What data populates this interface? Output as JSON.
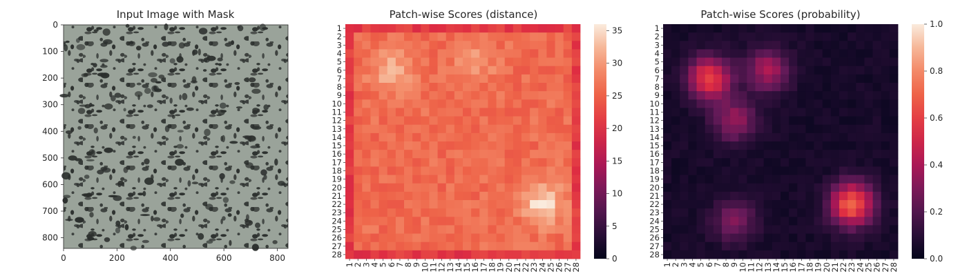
{
  "chart_data": [
    {
      "type": "image",
      "title": "Input Image with Mask",
      "xticks": [
        "0",
        "200",
        "400",
        "600",
        "800"
      ],
      "yticks": [
        "0",
        "100",
        "200",
        "300",
        "400",
        "500",
        "600",
        "700",
        "800"
      ],
      "xlim": [
        0,
        840
      ],
      "ylim": [
        840,
        0
      ],
      "palette": {
        "background": "#9aa39a",
        "spot": "#2b2f2d"
      }
    },
    {
      "type": "heatmap",
      "title": "Patch-wise Scores (distance)",
      "xlabels": [
        "1",
        "2",
        "3",
        "4",
        "5",
        "6",
        "7",
        "8",
        "9",
        "10",
        "11",
        "12",
        "13",
        "14",
        "15",
        "16",
        "17",
        "18",
        "19",
        "20",
        "21",
        "22",
        "23",
        "24",
        "25",
        "26",
        "27",
        "28"
      ],
      "ylabels": [
        "1",
        "2",
        "3",
        "4",
        "5",
        "6",
        "7",
        "8",
        "9",
        "10",
        "11",
        "12",
        "13",
        "14",
        "15",
        "16",
        "17",
        "18",
        "19",
        "20",
        "21",
        "22",
        "23",
        "24",
        "25",
        "26",
        "27",
        "28"
      ],
      "colorbar_ticks": [
        "0",
        "5",
        "10",
        "15",
        "20",
        "25",
        "30",
        "35"
      ],
      "vmin": 0,
      "vmax": 36,
      "colormap": "rocket",
      "grid_size": 28,
      "summary": {
        "border_rows": [
          1,
          28
        ],
        "border_cols": [
          1,
          28
        ],
        "border_value": 21,
        "interior_base": 26,
        "hotspots": [
          {
            "row": 6,
            "col": 6,
            "value": 32
          },
          {
            "row": 5,
            "col": 16,
            "value": 30
          },
          {
            "row": 22,
            "col": 24,
            "value": 35
          }
        ]
      }
    },
    {
      "type": "heatmap",
      "title": "Patch-wise Scores (probability)",
      "xlabels": [
        "1",
        "2",
        "3",
        "4",
        "5",
        "6",
        "7",
        "8",
        "9",
        "10",
        "11",
        "12",
        "13",
        "14",
        "15",
        "16",
        "17",
        "18",
        "19",
        "20",
        "21",
        "22",
        "23",
        "24",
        "25",
        "26",
        "27",
        "28"
      ],
      "ylabels": [
        "1",
        "2",
        "3",
        "4",
        "5",
        "6",
        "7",
        "8",
        "9",
        "10",
        "11",
        "12",
        "13",
        "14",
        "15",
        "16",
        "17",
        "18",
        "19",
        "20",
        "21",
        "22",
        "23",
        "24",
        "25",
        "26",
        "27",
        "28"
      ],
      "colorbar_ticks": [
        "0.0",
        "0.2",
        "0.4",
        "0.6",
        "0.8",
        "1.0"
      ],
      "vmin": 0,
      "vmax": 1,
      "colormap": "rocket",
      "grid_size": 28,
      "summary": {
        "base_value": 0.03,
        "hotspots": [
          {
            "row": 22,
            "col": 23,
            "value": 0.65
          },
          {
            "row": 7,
            "col": 6,
            "value": 0.55
          },
          {
            "row": 6,
            "col": 13,
            "value": 0.35
          },
          {
            "row": 12,
            "col": 9,
            "value": 0.3
          },
          {
            "row": 24,
            "col": 9,
            "value": 0.25
          }
        ]
      }
    }
  ]
}
